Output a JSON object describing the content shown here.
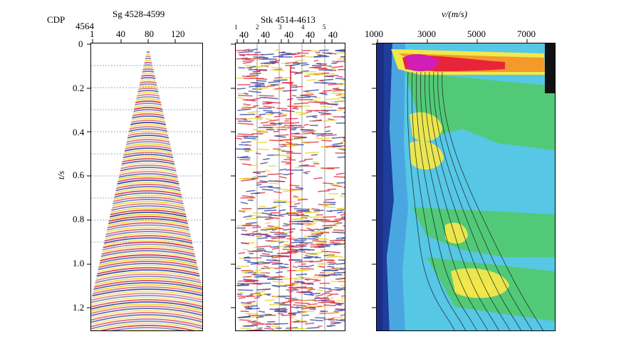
{
  "figure": {
    "cdp_label": "CDP",
    "cdp_value": "4564",
    "gather": {
      "title": "Sg 4528-4599",
      "x_ticks": [
        "1",
        "40",
        "80",
        "120"
      ]
    },
    "stack": {
      "title": "Stk 4514-4613",
      "panel_numbers": [
        "1",
        "2",
        "3",
        "4",
        "5"
      ],
      "panel_tick": "40"
    },
    "velocity": {
      "title": "v/(m/s)",
      "x_ticks": [
        "1000",
        "3000",
        "5000",
        "7000"
      ]
    },
    "time_axis": {
      "label": "t/s",
      "ticks": [
        "0",
        "0.2",
        "0.4",
        "0.6",
        "0.8",
        "1.0",
        "1.2"
      ]
    },
    "colors": {
      "red": "#d8283a",
      "blue": "#2a3f9e",
      "yellow": "#e8d21e",
      "vel_dark_blue": "#1f3d9a",
      "vel_cyan": "#57c7e6",
      "vel_green": "#52c96a",
      "vel_yellow": "#f2e84b",
      "vel_orange": "#f39a2a",
      "vel_red": "#e8243a",
      "vel_magenta": "#d11eb5"
    }
  }
}
